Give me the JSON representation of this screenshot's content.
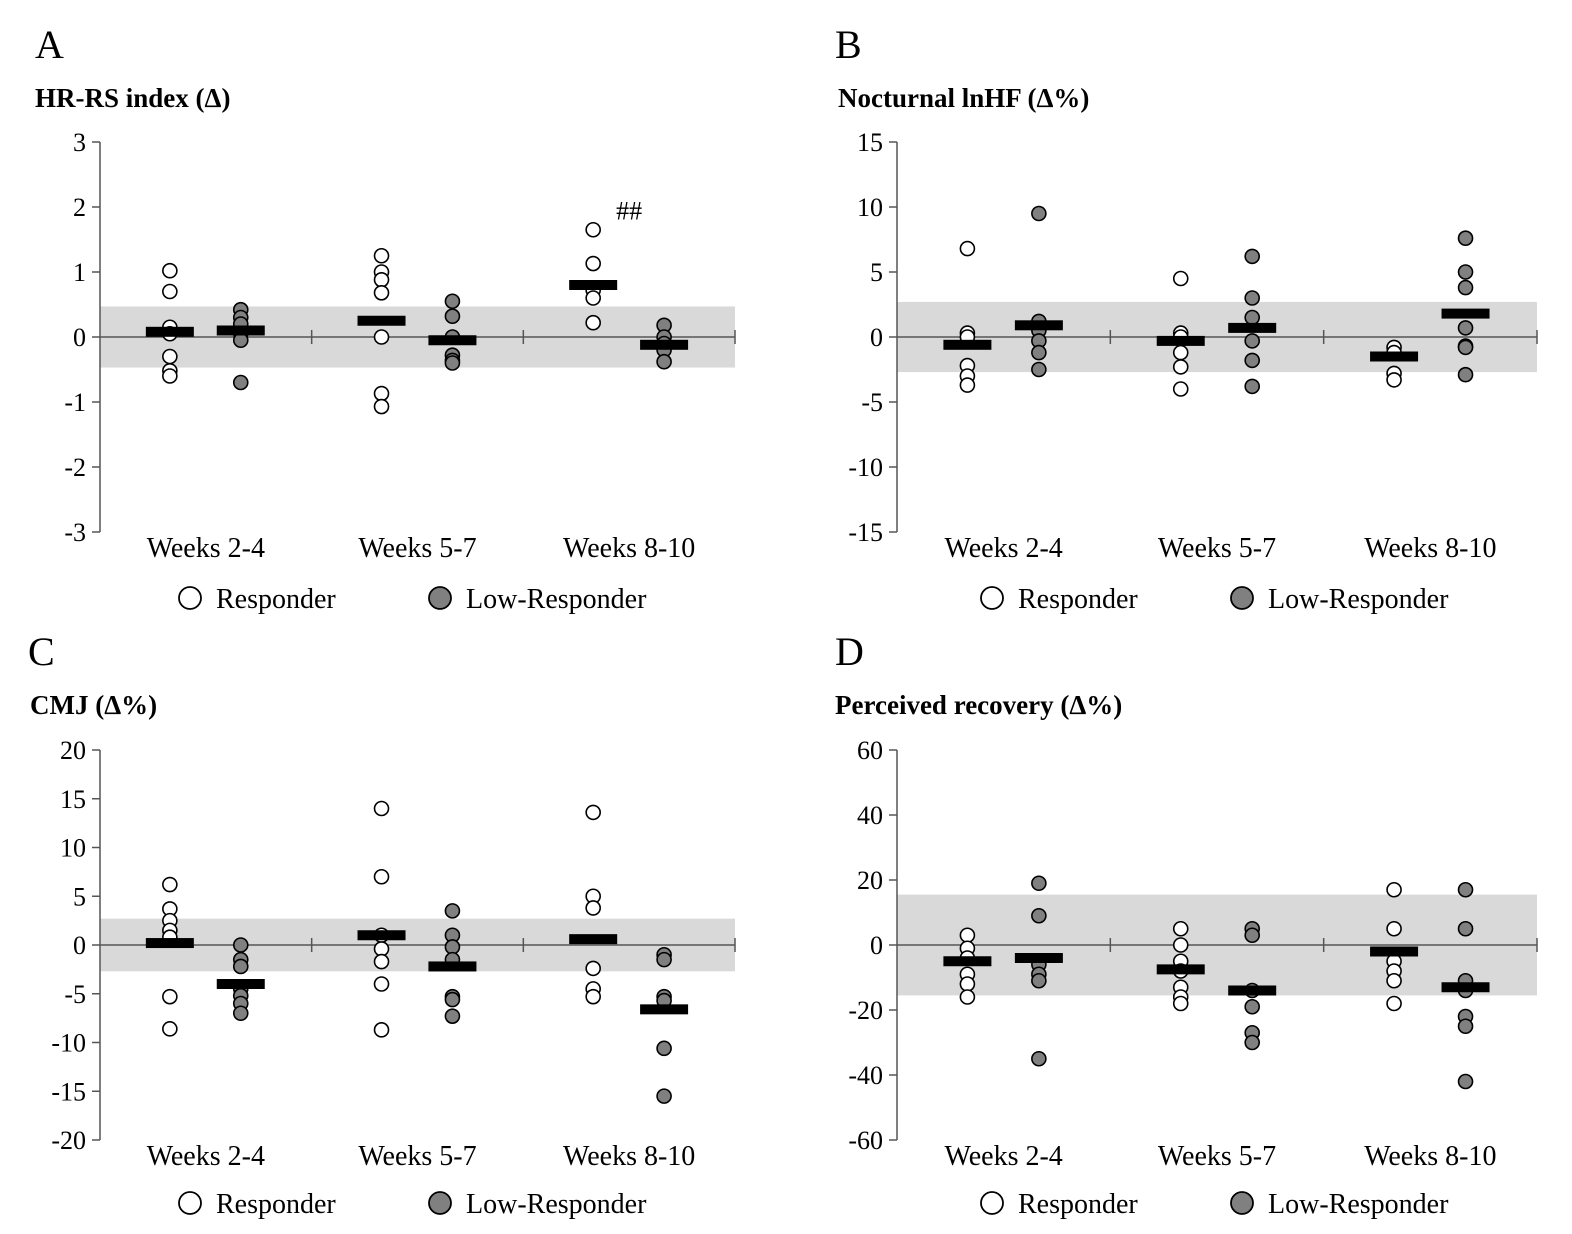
{
  "legend": {
    "responder": "Responder",
    "low_responder": "Low-Responder"
  },
  "colors": {
    "responder_fill": "#ffffff",
    "low_responder_fill": "#808080",
    "band": "#d9d9d9",
    "mean": "#000000"
  },
  "chart_data": [
    {
      "type": "scatter",
      "panel": "A",
      "title": "HR-RS index (Δ)",
      "categories": [
        "Weeks 2-4",
        "Weeks 5-7",
        "Weeks 8-10"
      ],
      "ylim": [
        -3,
        3
      ],
      "yticks": [
        3,
        2,
        1,
        0,
        -1,
        -2,
        -3
      ],
      "band": [
        -0.47,
        0.47
      ],
      "annotations": [
        {
          "text": "##",
          "category": 2,
          "y": 1.95
        }
      ],
      "series": [
        {
          "name": "Responder",
          "values": [
            [
              1.02,
              0.7,
              0.15,
              0.05,
              -0.3,
              -0.52,
              -0.6
            ],
            [
              1.25,
              1.0,
              0.88,
              0.68,
              0.0,
              -0.87,
              -1.07
            ],
            [
              1.65,
              1.13,
              0.72,
              0.6,
              0.22
            ]
          ],
          "means": [
            0.08,
            0.25,
            0.8
          ]
        },
        {
          "name": "Low-Responder",
          "values": [
            [
              0.42,
              0.3,
              0.2,
              0.05,
              -0.05,
              -0.7
            ],
            [
              0.55,
              0.32,
              0.0,
              -0.28,
              -0.36,
              -0.4
            ],
            [
              0.18,
              0.0,
              -0.1,
              -0.2,
              -0.38
            ]
          ],
          "means": [
            0.1,
            -0.05,
            -0.12
          ]
        }
      ]
    },
    {
      "type": "scatter",
      "panel": "B",
      "title": "Nocturnal lnHF (Δ%)",
      "categories": [
        "Weeks 2-4",
        "Weeks 5-7",
        "Weeks 8-10"
      ],
      "ylim": [
        -15,
        15
      ],
      "yticks": [
        15,
        10,
        5,
        0,
        -5,
        -10,
        -15
      ],
      "band": [
        -2.7,
        2.7
      ],
      "annotations": [],
      "series": [
        {
          "name": "Responder",
          "values": [
            [
              6.8,
              0.3,
              0,
              -2.2,
              -3.0,
              -3.7
            ],
            [
              4.5,
              0.3,
              0,
              -1.2,
              -2.3,
              -4.0
            ],
            [
              -0.8,
              -1.2,
              -2.8,
              -3.3
            ]
          ],
          "means": [
            -0.6,
            -0.3,
            -1.5
          ]
        },
        {
          "name": "Low-Responder",
          "values": [
            [
              9.5,
              1.2,
              0.5,
              -0.3,
              -1.2,
              -2.5
            ],
            [
              6.2,
              3.0,
              1.5,
              -0.3,
              -1.8,
              -3.8
            ],
            [
              7.6,
              5.0,
              3.8,
              0.7,
              -0.7,
              -0.8,
              -2.9
            ]
          ],
          "means": [
            0.9,
            0.7,
            1.8
          ]
        }
      ]
    },
    {
      "type": "scatter",
      "panel": "C",
      "title": "CMJ (Δ%)",
      "categories": [
        "Weeks 2-4",
        "Weeks 5-7",
        "Weeks 8-10"
      ],
      "ylim": [
        -20,
        20
      ],
      "yticks": [
        20,
        15,
        10,
        5,
        0,
        -5,
        -10,
        -15,
        -20
      ],
      "band": [
        -2.7,
        2.7
      ],
      "annotations": [],
      "series": [
        {
          "name": "Responder",
          "values": [
            [
              6.2,
              3.7,
              2.5,
              1.5,
              0.8,
              -5.3,
              -8.6
            ],
            [
              14,
              7,
              1.0,
              -0.4,
              -1.7,
              -4.0,
              -8.7
            ],
            [
              13.6,
              5.0,
              3.8,
              -2.4,
              -4.5,
              -5.3
            ]
          ],
          "means": [
            0.2,
            1.0,
            0.6
          ]
        },
        {
          "name": "Low-Responder",
          "values": [
            [
              0,
              -1.5,
              -2.2,
              -4.5,
              -5.2,
              -6.0,
              -7.0
            ],
            [
              3.5,
              1.0,
              -0.2,
              -1.5,
              -5.3,
              -5.6,
              -7.3
            ],
            [
              -1.0,
              -1.5,
              -5.3,
              -5.7,
              -10.6,
              -15.5
            ]
          ],
          "means": [
            -4.0,
            -2.2,
            -6.6
          ]
        }
      ]
    },
    {
      "type": "scatter",
      "panel": "D",
      "title": "Perceived recovery (Δ%)",
      "categories": [
        "Weeks 2-4",
        "Weeks 5-7",
        "Weeks 8-10"
      ],
      "ylim": [
        -60,
        60
      ],
      "yticks": [
        60,
        40,
        20,
        0,
        -20,
        -40,
        -60
      ],
      "band": [
        -15.5,
        15.5
      ],
      "annotations": [],
      "series": [
        {
          "name": "Responder",
          "values": [
            [
              3,
              -1,
              -4,
              -9,
              -12,
              -16
            ],
            [
              5,
              0,
              -5,
              -8,
              -13,
              -16,
              -18
            ],
            [
              17,
              5,
              -5,
              -8,
              -11,
              -18
            ]
          ],
          "means": [
            -5,
            -7.5,
            -2
          ]
        },
        {
          "name": "Low-Responder",
          "values": [
            [
              19,
              9,
              -6,
              -9,
              -11,
              -35
            ],
            [
              5,
              3,
              -14,
              -19,
              -27,
              -30
            ],
            [
              17,
              5,
              -11,
              -14,
              -22,
              -25,
              -42
            ]
          ],
          "means": [
            -4,
            -14,
            -13
          ]
        }
      ]
    }
  ]
}
